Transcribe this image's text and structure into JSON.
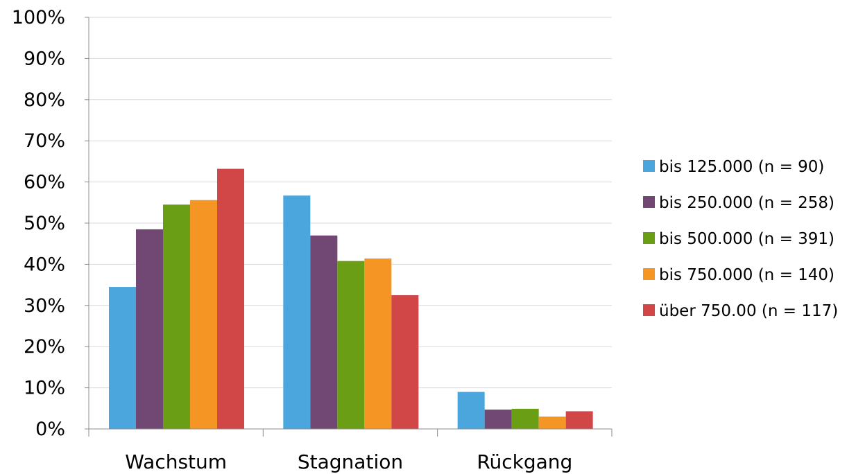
{
  "chart_data": {
    "type": "bar",
    "categories": [
      "Wachstum",
      "Stagnation",
      "Rückgang"
    ],
    "series": [
      {
        "name": "bis 125.000 (n = 90)",
        "color": "#4aa6dc",
        "values": [
          34.5,
          56.7,
          9.0
        ]
      },
      {
        "name": "bis 250.000 (n = 258)",
        "color": "#704873",
        "values": [
          48.5,
          47.0,
          4.7
        ]
      },
      {
        "name": "bis 500.000 (n = 391)",
        "color": "#6a9e15",
        "values": [
          54.5,
          40.8,
          4.9
        ]
      },
      {
        "name": "bis 750.000 (n = 140)",
        "color": "#f59523",
        "values": [
          55.6,
          41.4,
          3.0
        ]
      },
      {
        "name": "über 750.00 (n = 117)",
        "color": "#d14646",
        "values": [
          63.2,
          32.5,
          4.3
        ]
      }
    ],
    "y_ticks": [
      "0%",
      "10%",
      "20%",
      "30%",
      "40%",
      "50%",
      "60%",
      "70%",
      "80%",
      "90%",
      "100%"
    ],
    "ylim": [
      0,
      100
    ],
    "grid": true,
    "legend_position": "right"
  }
}
